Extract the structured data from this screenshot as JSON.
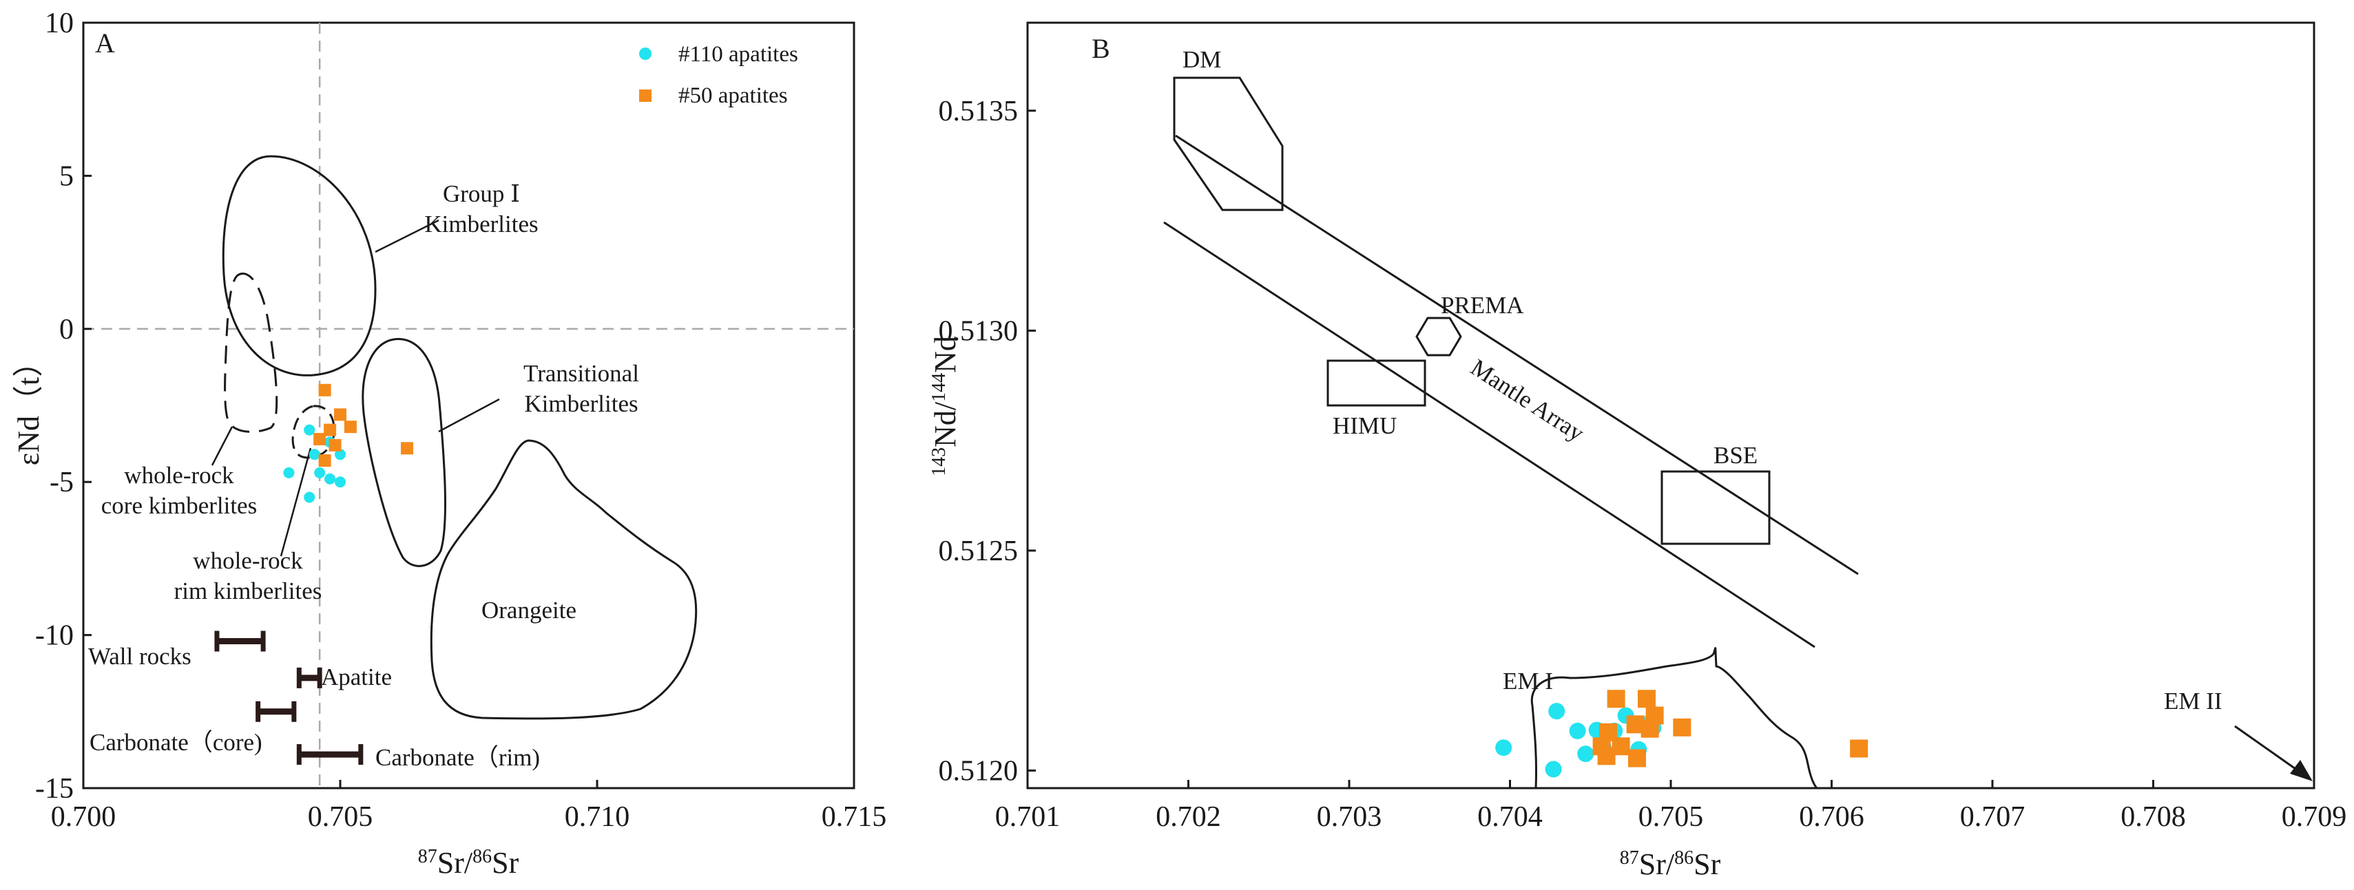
{
  "chart_data": [
    {
      "panel": "A",
      "type": "scatter",
      "title": "",
      "xlabel": {
        "sup": "87",
        "a": "Sr/",
        "sup2": "86",
        "b": "Sr"
      },
      "ylabel": "εNd（t）",
      "xlim": [
        0.7,
        0.715
      ],
      "ylim": [
        -15,
        10
      ],
      "xticks": [
        "0.700",
        "0.705",
        "0.710",
        "0.715"
      ],
      "yticks": [
        "10",
        "5",
        "0",
        "-5",
        "-10",
        "-15"
      ],
      "reference_lines": {
        "x": 0.7046,
        "y": 0,
        "style": "dashed",
        "color": "#aaaaaa"
      },
      "legend_position": "top-right",
      "series": [
        {
          "name": "#110 apatites",
          "marker": "circle",
          "color": "#22e3ef",
          "points": [
            [
              0.7044,
              -3.3
            ],
            [
              0.7045,
              -4.1
            ],
            [
              0.7048,
              -3.7
            ],
            [
              0.705,
              -4.1
            ],
            [
              0.7046,
              -4.7
            ],
            [
              0.7048,
              -4.9
            ],
            [
              0.705,
              -5.0
            ],
            [
              0.7044,
              -5.5
            ],
            [
              0.704,
              -4.7
            ],
            [
              0.7047,
              -4.3
            ]
          ]
        },
        {
          "name": "#50 apatites",
          "marker": "square",
          "color": "#f48a1a",
          "points": [
            [
              0.7047,
              -2.0
            ],
            [
              0.705,
              -2.8
            ],
            [
              0.7052,
              -3.2
            ],
            [
              0.7048,
              -3.3
            ],
            [
              0.7046,
              -3.6
            ],
            [
              0.7049,
              -3.8
            ],
            [
              0.7047,
              -4.3
            ],
            [
              0.7063,
              -3.9
            ]
          ]
        }
      ],
      "fields": [
        {
          "label": "Group Ⅰ\nKimberlites"
        },
        {
          "label": "Transitional\nKimberlites"
        },
        {
          "label": "Orangeite"
        },
        {
          "label": "whole-rock\ncore kimberlites"
        },
        {
          "label": "whole-rock\nrim kimberlites"
        }
      ],
      "ranges": [
        {
          "label": "Wall rocks",
          "x": [
            0.7026,
            0.7035
          ],
          "y": -10.2
        },
        {
          "label": "Apatite",
          "x": [
            0.7042,
            0.7046
          ],
          "y": -11.4
        },
        {
          "label": "Carbonate（core)",
          "x": [
            0.7034,
            0.7041
          ],
          "y": -12.5
        },
        {
          "label": "Carbonate（rim)",
          "x": [
            0.7042,
            0.7054
          ],
          "y": -13.9
        }
      ]
    },
    {
      "panel": "B",
      "type": "scatter",
      "title": "",
      "xlabel": {
        "sup": "87",
        "a": "Sr/",
        "sup2": "86",
        "b": "Sr"
      },
      "ylabel": {
        "sup": "143",
        "a": "Nd/",
        "sup2": "144",
        "b": "Nd"
      },
      "xlim": [
        0.701,
        0.709
      ],
      "ylim": [
        0.51196,
        0.5137
      ],
      "xticks": [
        "0.701",
        "0.702",
        "0.703",
        "0.704",
        "0.705",
        "0.706",
        "0.707",
        "0.708",
        "0.709"
      ],
      "yticks": [
        "0.5135",
        "0.5130",
        "0.5125",
        "0.5120"
      ],
      "series": [
        {
          "name": "#110 apatites",
          "marker": "circle",
          "color": "#22e3ef",
          "points": [
            [
              0.70429,
              0.512135
            ],
            [
              0.70396,
              0.512052
            ],
            [
              0.70442,
              0.51209
            ],
            [
              0.70454,
              0.512092
            ],
            [
              0.70465,
              0.51209
            ],
            [
              0.70472,
              0.512125
            ],
            [
              0.70487,
              0.512108
            ],
            [
              0.70489,
              0.512097
            ],
            [
              0.7048,
              0.512048
            ],
            [
              0.70458,
              0.512053
            ],
            [
              0.70447,
              0.512038
            ],
            [
              0.70427,
              0.512003
            ]
          ]
        },
        {
          "name": "#50 apatites",
          "marker": "square",
          "color": "#f48a1a",
          "points": [
            [
              0.70466,
              0.512163
            ],
            [
              0.70485,
              0.512163
            ],
            [
              0.7049,
              0.512125
            ],
            [
              0.70478,
              0.512105
            ],
            [
              0.70461,
              0.512087
            ],
            [
              0.70487,
              0.512095
            ],
            [
              0.70507,
              0.512098
            ],
            [
              0.70457,
              0.512055
            ],
            [
              0.70469,
              0.512055
            ],
            [
              0.7046,
              0.512033
            ],
            [
              0.70479,
              0.512028
            ],
            [
              0.70617,
              0.51205
            ]
          ]
        }
      ],
      "fields": [
        {
          "label": "DM"
        },
        {
          "label": "PREMA"
        },
        {
          "label": "HIMU"
        },
        {
          "label": "BSE"
        },
        {
          "label": "EM I"
        },
        {
          "label": "EM II"
        },
        {
          "label": "Mantle Array"
        }
      ]
    }
  ]
}
